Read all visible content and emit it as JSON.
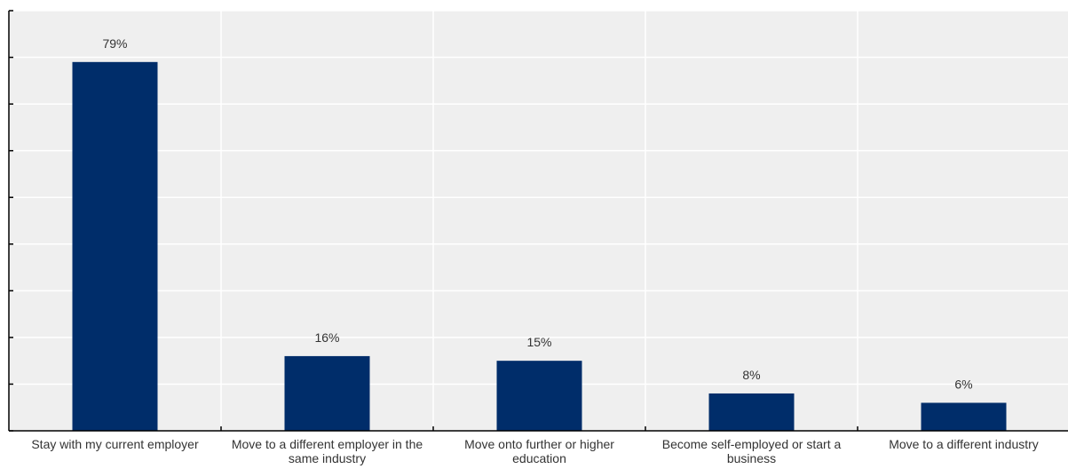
{
  "chart_data": {
    "type": "bar",
    "categories": [
      [
        "Stay with my current employer"
      ],
      [
        "Move to a different employer in the",
        "same industry"
      ],
      [
        "Move onto further or higher",
        "education"
      ],
      [
        "Become self-employed or start a",
        "business"
      ],
      [
        "Move to a different industry"
      ]
    ],
    "values": [
      79,
      16,
      15,
      8,
      6
    ],
    "value_labels": [
      "79%",
      "16%",
      "15%",
      "8%",
      "6%"
    ],
    "ylim": [
      0,
      90
    ],
    "y_tick_step": 10,
    "grid": true,
    "y_tick_labels_shown": false,
    "title": "",
    "xlabel": "",
    "ylabel": ""
  },
  "colors": {
    "bar": "#002d6a",
    "plot_background": "#efefef",
    "grid": "#ffffff",
    "axis": "#000000"
  }
}
